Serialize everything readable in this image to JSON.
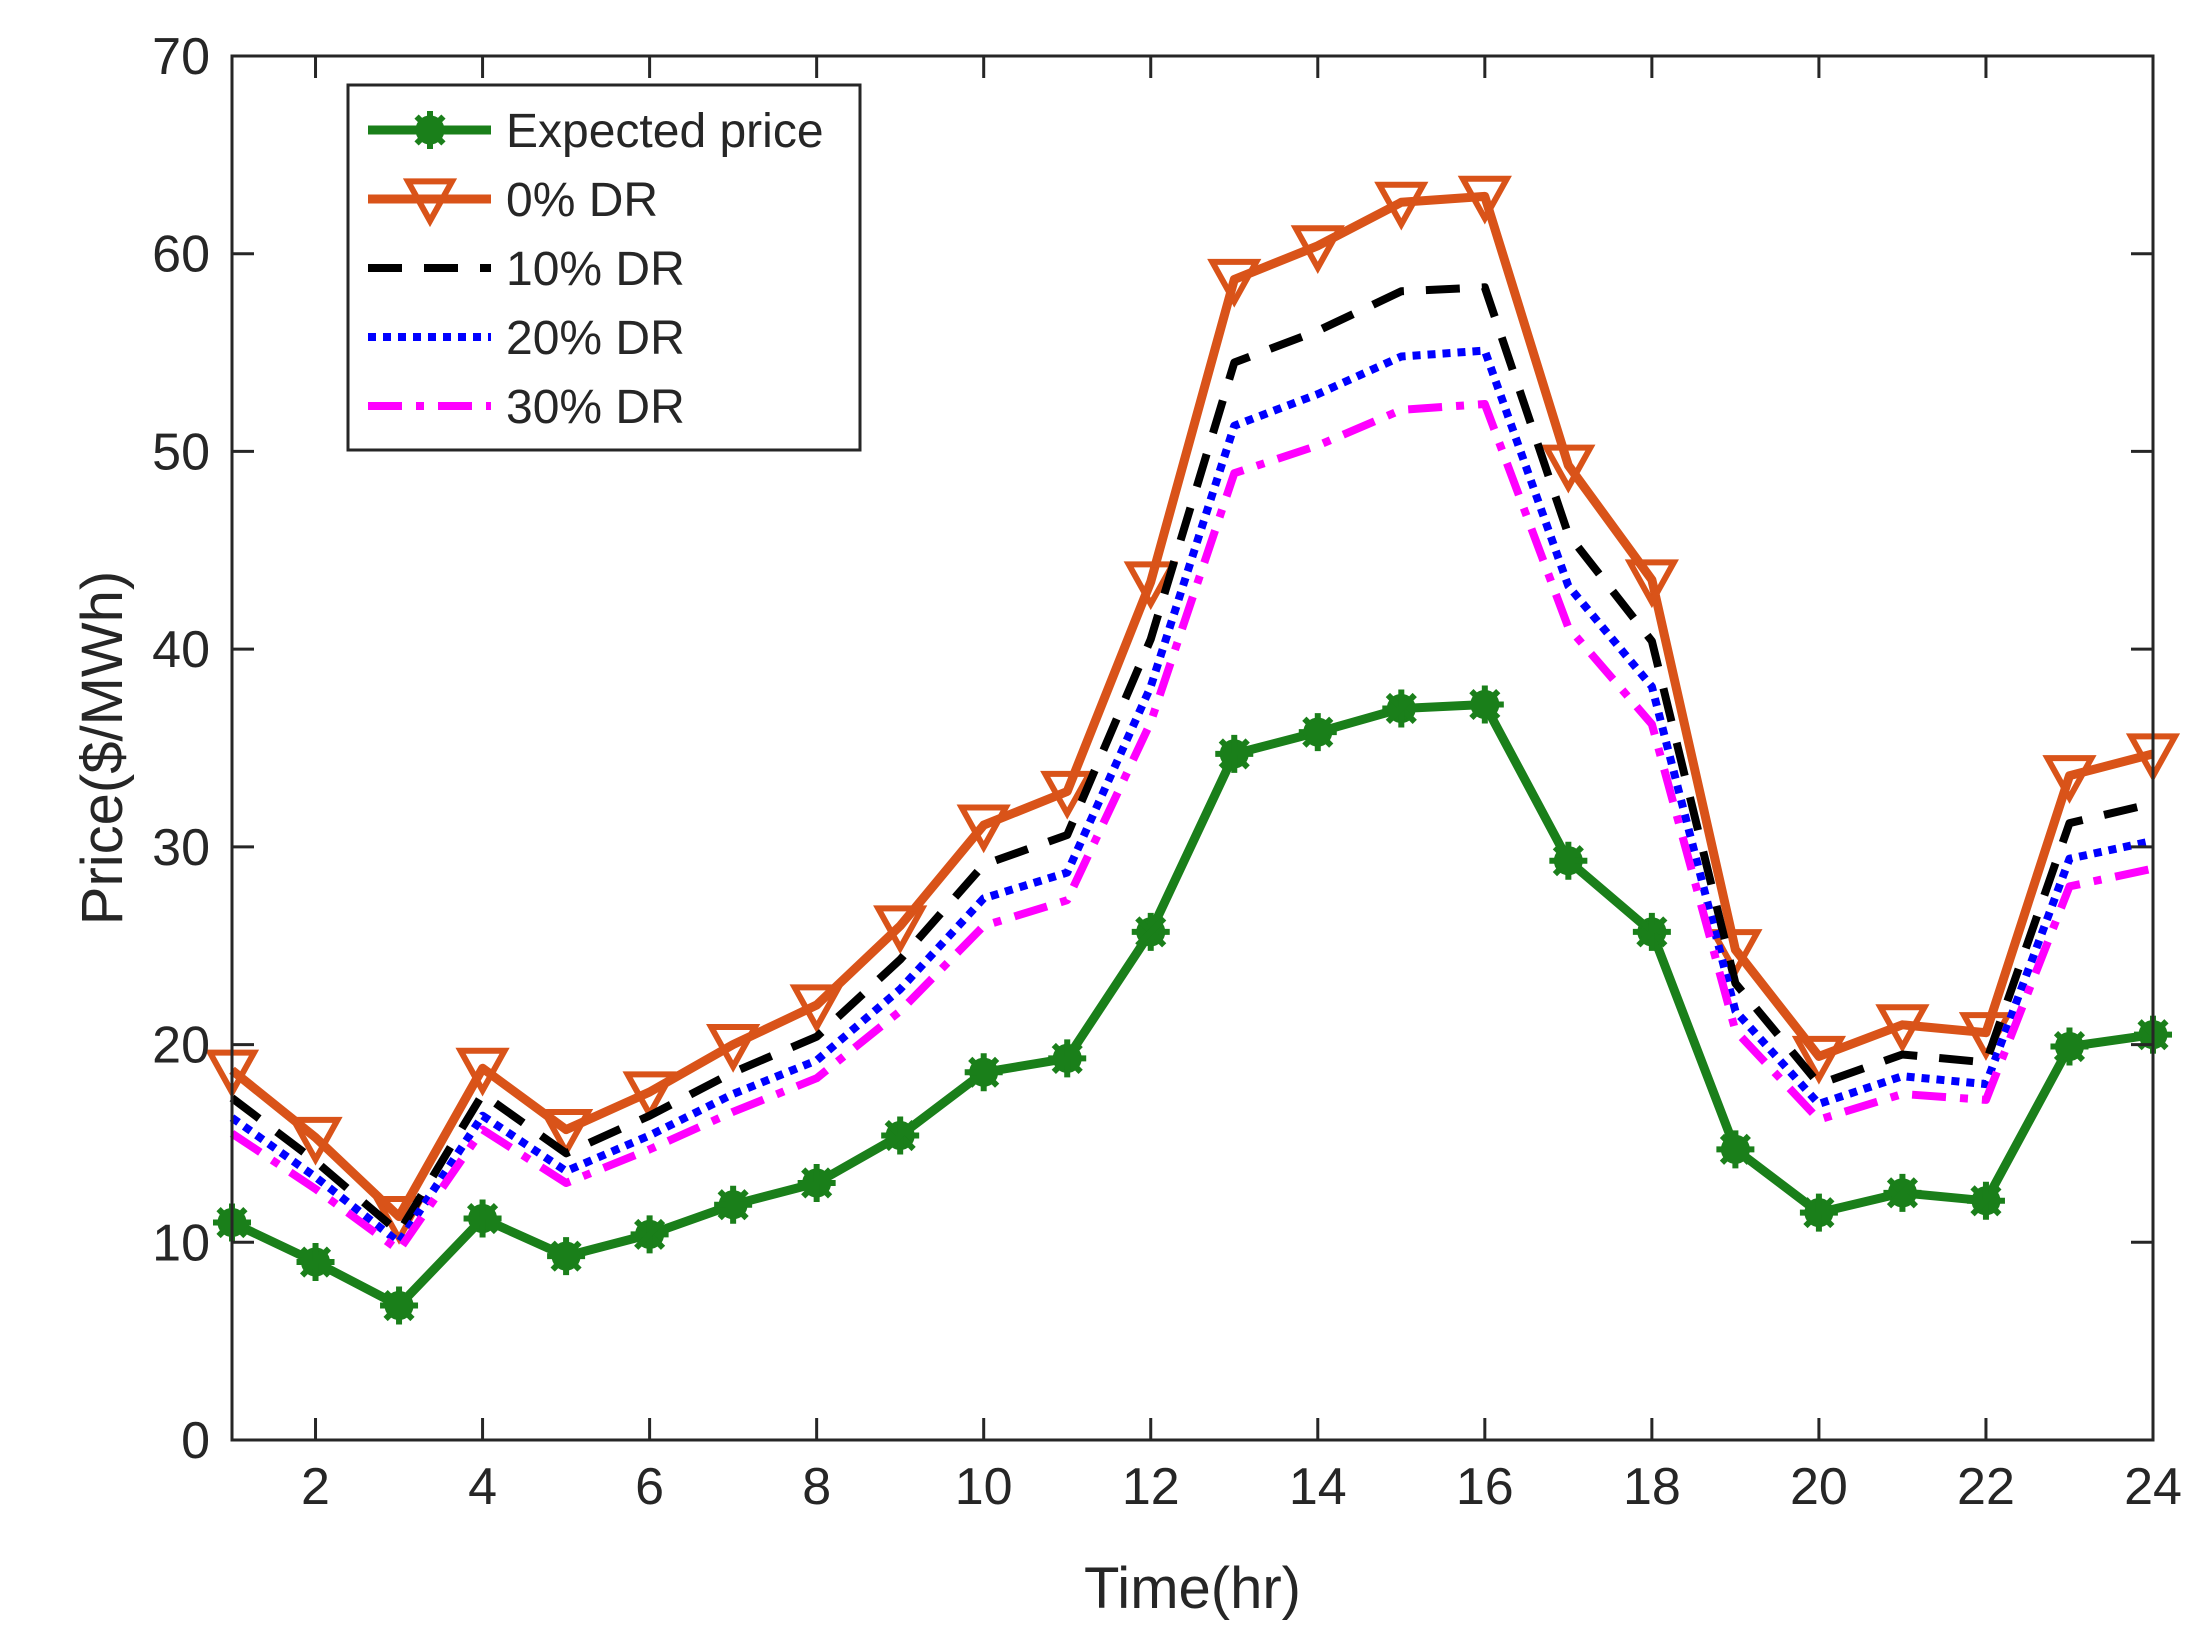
{
  "chart_data": {
    "type": "line",
    "title": "",
    "xlabel": "Time(hr)",
    "ylabel": "Price($/MWh)",
    "xlim": [
      1,
      24
    ],
    "ylim": [
      0,
      70
    ],
    "xticks": [
      2,
      4,
      6,
      8,
      10,
      12,
      14,
      16,
      18,
      20,
      22,
      24
    ],
    "yticks": [
      0,
      10,
      20,
      30,
      40,
      50,
      60,
      70
    ],
    "grid": false,
    "legend_position": "top-left",
    "x": [
      1,
      2,
      3,
      4,
      5,
      6,
      7,
      8,
      9,
      10,
      11,
      12,
      13,
      14,
      15,
      16,
      17,
      18,
      19,
      20,
      21,
      22,
      23,
      24
    ],
    "series": [
      {
        "name": "Expected price",
        "color": "#1a7f1a",
        "style": "solid",
        "marker": "asterisk",
        "values": [
          11.0,
          9.0,
          6.8,
          11.2,
          9.3,
          10.4,
          11.9,
          13.0,
          15.4,
          18.6,
          19.3,
          25.7,
          34.7,
          35.8,
          37.0,
          37.2,
          29.3,
          25.7,
          14.7,
          11.5,
          12.5,
          12.1,
          19.9,
          20.5
        ]
      },
      {
        "name": "0% DR",
        "color": "#d95319",
        "style": "solid",
        "marker": "triangle-down",
        "values": [
          18.7,
          15.3,
          11.3,
          18.8,
          15.7,
          17.6,
          20.0,
          22.0,
          26.0,
          31.1,
          32.8,
          43.4,
          58.7,
          60.4,
          62.6,
          62.9,
          49.3,
          43.5,
          24.8,
          19.4,
          21.0,
          20.6,
          33.6,
          34.7
        ]
      },
      {
        "name": "10% DR",
        "color": "#000000",
        "style": "dashed",
        "marker": "none",
        "values": [
          17.3,
          14.1,
          10.5,
          17.5,
          14.5,
          16.4,
          18.6,
          20.4,
          24.3,
          29.1,
          30.6,
          40.5,
          54.5,
          56.1,
          58.1,
          58.3,
          45.8,
          40.4,
          23.1,
          18.0,
          19.5,
          19.1,
          31.2,
          32.2
        ]
      },
      {
        "name": "20% DR",
        "color": "#0000ff",
        "style": "dotted",
        "marker": "none",
        "values": [
          16.3,
          13.3,
          10.0,
          16.4,
          13.6,
          15.4,
          17.5,
          19.2,
          22.8,
          27.4,
          28.7,
          38.1,
          51.3,
          52.9,
          54.8,
          55.1,
          43.2,
          38.1,
          21.7,
          17.0,
          18.4,
          18.0,
          29.4,
          30.3
        ]
      },
      {
        "name": "30% DR",
        "color": "#ff00ff",
        "style": "dashdot",
        "marker": "none",
        "values": [
          15.5,
          12.7,
          9.6,
          15.7,
          13.0,
          14.7,
          16.6,
          18.3,
          21.7,
          26.0,
          27.3,
          36.3,
          48.9,
          50.3,
          52.1,
          52.4,
          41.1,
          36.2,
          20.7,
          16.2,
          17.5,
          17.2,
          28.0,
          28.9
        ]
      }
    ]
  }
}
